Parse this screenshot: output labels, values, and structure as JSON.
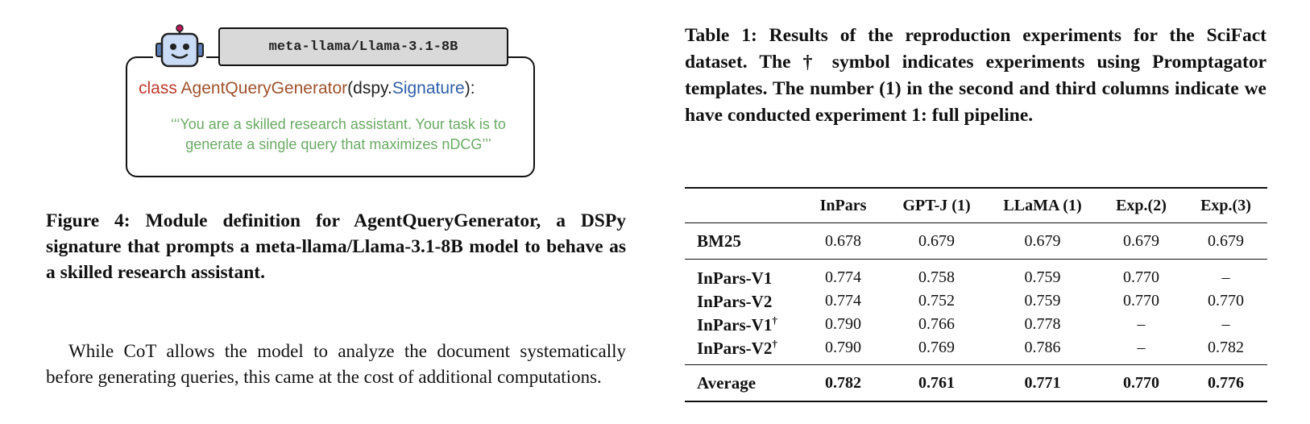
{
  "figure": {
    "model_name": "meta-llama/Llama-3.1-8B",
    "code": {
      "keyword": "class",
      "class_name": "AgentQueryGenerator",
      "paren_open": "(dspy.",
      "signature": "Signature",
      "paren_close": "):"
    },
    "docstring": "‘‘‘You are a skilled research assistant. Your task is to generate a single query that maximizes nDCG’’’",
    "caption": "Figure 4: Module definition for AgentQueryGenerator, a DSPy signature that prompts a meta-llama/Llama-3.1-8B model to behave as a skilled research assistant."
  },
  "body_text": "While CoT allows the model to analyze the document systematically before generating queries, this came at the cost of additional computations.",
  "table": {
    "caption": "Table 1: Results of the reproduction experiments for the SciFact dataset. The † symbol indicates experiments using Promptagator templates. The number (1) in the second and third columns indicate we have conducted experiment 1: full pipeline.",
    "headers": [
      "",
      "InPars",
      "GPT-J (1)",
      "LLaMA (1)",
      "Exp.(2)",
      "Exp.(3)"
    ],
    "rows": [
      {
        "label": "BM25",
        "sup": "",
        "values": [
          "0.678",
          "0.679",
          "0.679",
          "0.679",
          "0.679"
        ]
      },
      {
        "label": "InPars-V1",
        "sup": "",
        "values": [
          "0.774",
          "0.758",
          "0.759",
          "0.770",
          "–"
        ]
      },
      {
        "label": "InPars-V2",
        "sup": "",
        "values": [
          "0.774",
          "0.752",
          "0.759",
          "0.770",
          "0.770"
        ]
      },
      {
        "label": "InPars-V1",
        "sup": "†",
        "values": [
          "0.790",
          "0.766",
          "0.778",
          "–",
          "–"
        ]
      },
      {
        "label": "InPars-V2",
        "sup": "†",
        "values": [
          "0.790",
          "0.769",
          "0.786",
          "–",
          "0.782"
        ]
      },
      {
        "label": "Average",
        "sup": "",
        "values": [
          "0.782",
          "0.761",
          "0.771",
          "0.770",
          "0.776"
        ]
      }
    ]
  }
}
